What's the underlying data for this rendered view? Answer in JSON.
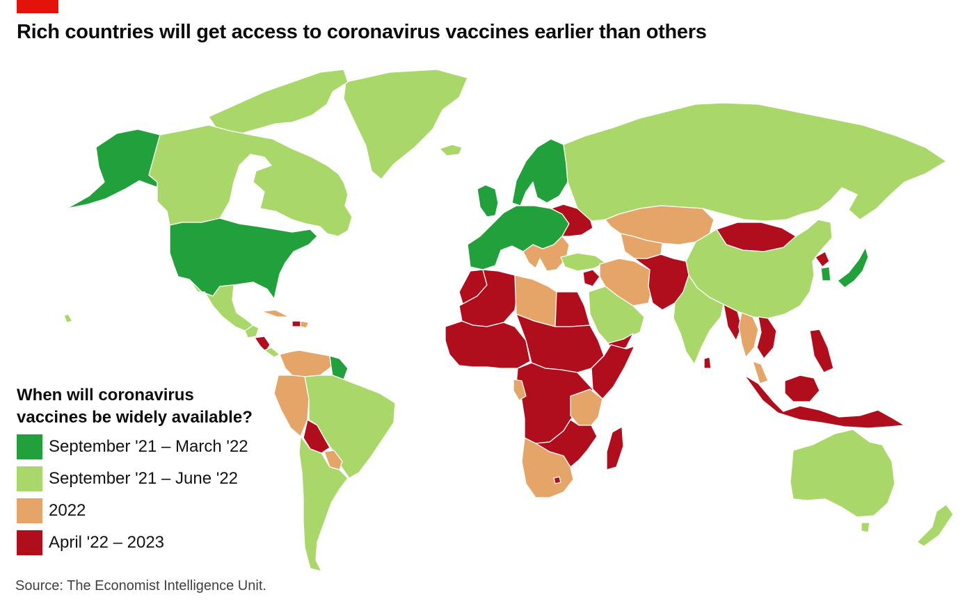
{
  "title": "Rich countries will get access to coronavirus vaccines earlier than others",
  "colors": {
    "brand_tag": "#e3120b",
    "sep21_mar22": "#22a03b",
    "sep21_jun22": "#a9d769",
    "y2022": "#e5a568",
    "apr22_2023": "#b10e1d"
  },
  "legend": {
    "heading_line1": "When will coronavirus",
    "heading_line2": "vaccines be widely available?",
    "items": [
      {
        "label": "September '21 – March '22",
        "color": "#22a03b"
      },
      {
        "label": "September '21 – June '22",
        "color": "#a9d769"
      },
      {
        "label": "2022",
        "color": "#e5a568"
      },
      {
        "label": "April '22 – 2023",
        "color": "#b10e1d"
      }
    ]
  },
  "source": "Source: The Economist Intelligence Unit."
}
